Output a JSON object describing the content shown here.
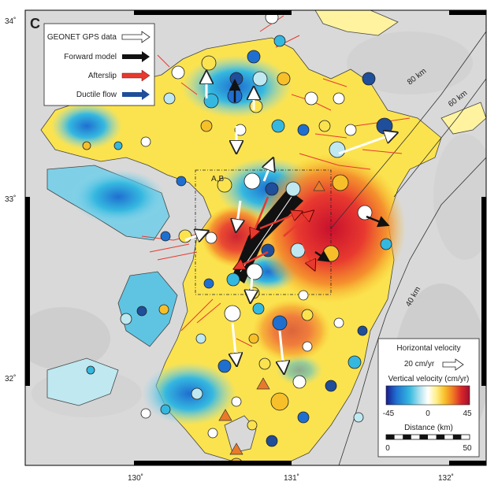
{
  "panel_label": "C",
  "axis": {
    "lat_ticks": [
      "34˚",
      "33˚",
      "32˚"
    ],
    "lon_ticks": [
      "130˚",
      "131˚",
      "132˚"
    ]
  },
  "legend": {
    "items": [
      {
        "label": "GEONET GPS data",
        "color": "#ffffff"
      },
      {
        "label": "Forward model",
        "color": "#111111"
      },
      {
        "label": "Afterslip",
        "color": "#e8392f"
      },
      {
        "label": "Ductile flow",
        "color": "#1f4e9a"
      }
    ]
  },
  "depth_contours": [
    "80 km",
    "60 km",
    "40 km"
  ],
  "inset_label": "A,B",
  "scale_box": {
    "horizontal_title": "Horizontal velocity",
    "horizontal_ref": "20 cm/yr",
    "vertical_title": "Vertical velocity (cm/yr)",
    "colorbar_ticks": [
      "-45",
      "0",
      "45"
    ],
    "colorbar_colors": [
      "#1a1a8c",
      "#1f6fd0",
      "#35b8e0",
      "#bfe8f0",
      "#ffffff",
      "#fff08a",
      "#f7c02a",
      "#f07a24",
      "#d8262a",
      "#a01030"
    ],
    "distance_title": "Distance (km)",
    "distance_ticks": [
      "0",
      "50"
    ]
  }
}
